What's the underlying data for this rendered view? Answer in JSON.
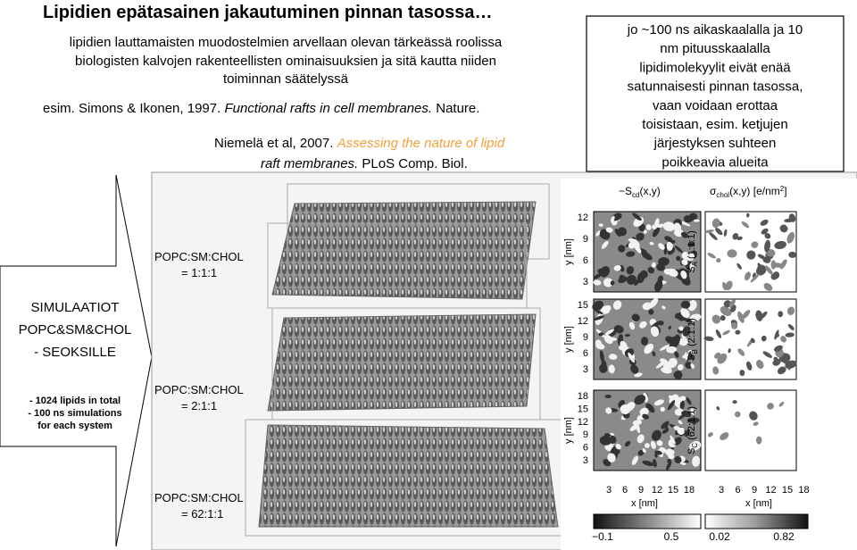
{
  "header": {
    "title": "Lipidien epätasainen jakautuminen pinnan tasossa…"
  },
  "intro": {
    "lines": [
      "lipidien lauttamaisten muodostelmien arvellaan olevan tärkeässä roolissa",
      "biologisten kalvojen rakenteellisten ominaisuuksien ja sitä kautta niiden",
      "toiminnan säätelyssä"
    ]
  },
  "references": [
    {
      "authors": "esim. Simons & Ikonen, 1997.",
      "title": "Functional rafts in cell membranes.",
      "journal": "Nature."
    },
    {
      "authors": "Niemelä et al, 2007.",
      "title_lines": [
        "Assessing the nature of lipid",
        "raft membranes."
      ],
      "journal": "PLoS Comp. Biol."
    }
  ],
  "callout": {
    "lines": [
      "jo ~100 ns aikaskaalalla ja 10",
      "nm pituusskaalalla",
      "lipidimolekyylit eivät enää",
      "satunnaisesti pinnan tasossa,",
      "vaan voidaan erottaa",
      "toisistaan, esim. ketjujen",
      "järjestyksen suhteen",
      "poikkeavia alueita"
    ]
  },
  "arrow": {
    "heading_lines": [
      "SIMULAATIOT",
      "POPC&SM&CHOL",
      "- SEOKSILLE"
    ],
    "details": [
      "- 1024 lipids in total",
      "- 100 ns simulations",
      "for each system"
    ]
  },
  "systems": [
    {
      "name": "POPC:SM:CHOL",
      "ratio": "= 1:1:1"
    },
    {
      "name": "POPC:SM:CHOL",
      "ratio": "= 2:1:1"
    },
    {
      "name": "POPC:SM:CHOL",
      "ratio": "= 62:1:1"
    }
  ],
  "figure": {
    "col_headers": [
      [
        "−S",
        "cd",
        "(x,y)"
      ],
      [
        "σ",
        "chol",
        "(x,y) [e/nm",
        "2",
        "]"
      ]
    ],
    "row_labels": [
      [
        "S",
        "A",
        " (1:1:1)"
      ],
      [
        "S",
        "B",
        " (2:1:1)"
      ],
      [
        "S",
        "C",
        " (62:1:1)"
      ]
    ],
    "y_label": "y [nm]",
    "x_label": "x [nm]",
    "y_ticks": [
      [
        "12",
        "9",
        "6",
        "3"
      ],
      [
        "15",
        "12",
        "9",
        "6",
        "3"
      ],
      [
        "18",
        "15",
        "12",
        "9",
        "6",
        "3"
      ]
    ],
    "x_ticks": [
      "3",
      "6",
      "9",
      "12",
      "15",
      "18"
    ],
    "colorbar_ticks": [
      [
        "−0.1",
        "0.5"
      ],
      [
        "0.02",
        "0.82"
      ]
    ]
  }
}
